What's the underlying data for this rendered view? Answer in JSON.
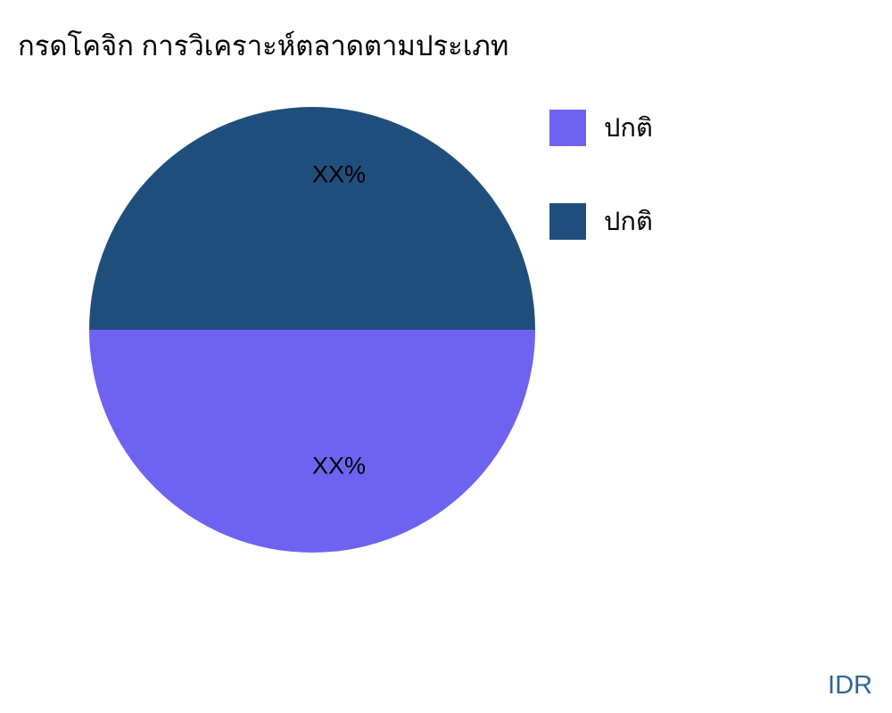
{
  "title": "กรดโคจิก การวิเคราะห์ตลาดตามประเภท",
  "watermark": "IDR",
  "chart_data": {
    "type": "pie",
    "title": "กรดโคจิก การวิเคราะห์ตลาดตามประเภท",
    "legend_position": "right",
    "start_angle_css_deg": 90,
    "slices": [
      {
        "label": "ปกติ",
        "value": 50,
        "display_value": "XX%",
        "color": "#6E63F0",
        "position": "bottom-half"
      },
      {
        "label": "ปกติ",
        "value": 50,
        "display_value": "XX%",
        "color": "#204E7C",
        "position": "top-half"
      }
    ]
  }
}
